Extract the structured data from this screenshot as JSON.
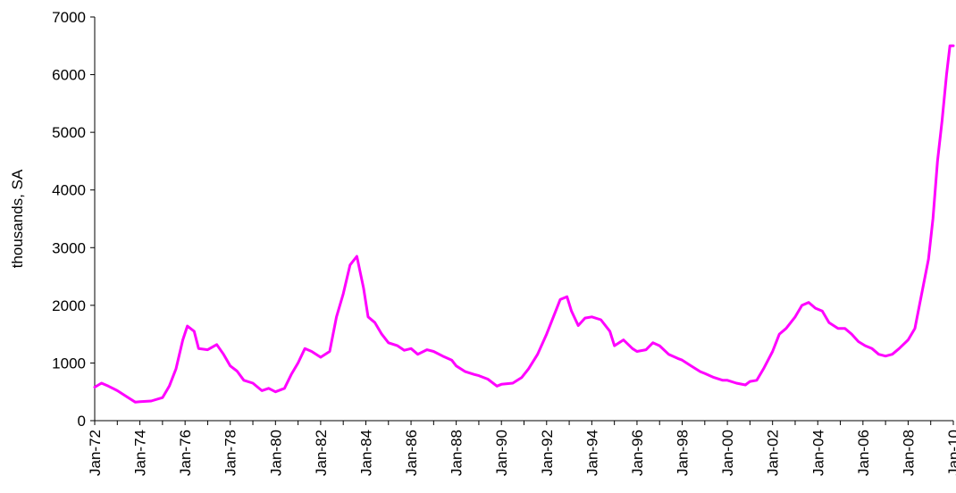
{
  "chart_data": {
    "type": "line",
    "title": "",
    "xlabel": "",
    "ylabel": "thousands, SA",
    "ylim": [
      0,
      7000
    ],
    "yticks": [
      0,
      1000,
      2000,
      3000,
      4000,
      5000,
      6000,
      7000
    ],
    "xlim": [
      1972.0,
      2010.0
    ],
    "xtick_labels": [
      "Jan-72",
      "Jan-74",
      "Jan-76",
      "Jan-78",
      "Jan-80",
      "Jan-82",
      "Jan-84",
      "Jan-86",
      "Jan-88",
      "Jan-90",
      "Jan-92",
      "Jan-94",
      "Jan-96",
      "Jan-98",
      "Jan-00",
      "Jan-02",
      "Jan-04",
      "Jan-06",
      "Jan-08",
      "Jan-10"
    ],
    "grid": false,
    "series": [
      {
        "color": "#ff00ff",
        "points": [
          [
            1972.0,
            580
          ],
          [
            1972.3,
            650
          ],
          [
            1972.6,
            600
          ],
          [
            1973.0,
            520
          ],
          [
            1973.4,
            420
          ],
          [
            1973.8,
            320
          ],
          [
            1974.0,
            330
          ],
          [
            1974.5,
            340
          ],
          [
            1975.0,
            400
          ],
          [
            1975.3,
            600
          ],
          [
            1975.6,
            900
          ],
          [
            1975.9,
            1400
          ],
          [
            1976.1,
            1640
          ],
          [
            1976.4,
            1550
          ],
          [
            1976.6,
            1250
          ],
          [
            1977.0,
            1230
          ],
          [
            1977.4,
            1320
          ],
          [
            1977.7,
            1150
          ],
          [
            1978.0,
            950
          ],
          [
            1978.3,
            860
          ],
          [
            1978.6,
            700
          ],
          [
            1979.0,
            650
          ],
          [
            1979.4,
            520
          ],
          [
            1979.7,
            560
          ],
          [
            1980.0,
            500
          ],
          [
            1980.4,
            560
          ],
          [
            1980.7,
            800
          ],
          [
            1981.0,
            1000
          ],
          [
            1981.3,
            1250
          ],
          [
            1981.6,
            1200
          ],
          [
            1982.0,
            1100
          ],
          [
            1982.4,
            1200
          ],
          [
            1982.7,
            1800
          ],
          [
            1983.0,
            2200
          ],
          [
            1983.3,
            2700
          ],
          [
            1983.6,
            2850
          ],
          [
            1983.9,
            2300
          ],
          [
            1984.1,
            1800
          ],
          [
            1984.4,
            1700
          ],
          [
            1984.7,
            1500
          ],
          [
            1985.0,
            1350
          ],
          [
            1985.4,
            1300
          ],
          [
            1985.7,
            1220
          ],
          [
            1986.0,
            1250
          ],
          [
            1986.3,
            1150
          ],
          [
            1986.7,
            1230
          ],
          [
            1987.0,
            1200
          ],
          [
            1987.4,
            1120
          ],
          [
            1987.8,
            1050
          ],
          [
            1988.0,
            950
          ],
          [
            1988.4,
            850
          ],
          [
            1988.8,
            800
          ],
          [
            1989.0,
            780
          ],
          [
            1989.4,
            720
          ],
          [
            1989.8,
            600
          ],
          [
            1990.0,
            630
          ],
          [
            1990.5,
            650
          ],
          [
            1990.9,
            750
          ],
          [
            1991.2,
            900
          ],
          [
            1991.6,
            1150
          ],
          [
            1992.0,
            1500
          ],
          [
            1992.3,
            1800
          ],
          [
            1992.6,
            2100
          ],
          [
            1992.9,
            2150
          ],
          [
            1993.1,
            1900
          ],
          [
            1993.4,
            1650
          ],
          [
            1993.7,
            1780
          ],
          [
            1994.0,
            1800
          ],
          [
            1994.4,
            1750
          ],
          [
            1994.8,
            1550
          ],
          [
            1995.0,
            1300
          ],
          [
            1995.4,
            1400
          ],
          [
            1995.8,
            1250
          ],
          [
            1996.0,
            1200
          ],
          [
            1996.4,
            1230
          ],
          [
            1996.7,
            1350
          ],
          [
            1997.0,
            1300
          ],
          [
            1997.4,
            1150
          ],
          [
            1997.8,
            1080
          ],
          [
            1998.0,
            1050
          ],
          [
            1998.4,
            950
          ],
          [
            1998.8,
            850
          ],
          [
            1999.0,
            820
          ],
          [
            1999.4,
            750
          ],
          [
            1999.8,
            700
          ],
          [
            2000.0,
            700
          ],
          [
            2000.4,
            650
          ],
          [
            2000.8,
            620
          ],
          [
            2001.0,
            680
          ],
          [
            2001.3,
            700
          ],
          [
            2001.6,
            900
          ],
          [
            2002.0,
            1200
          ],
          [
            2002.3,
            1500
          ],
          [
            2002.6,
            1600
          ],
          [
            2003.0,
            1800
          ],
          [
            2003.3,
            2000
          ],
          [
            2003.6,
            2050
          ],
          [
            2003.9,
            1950
          ],
          [
            2004.2,
            1900
          ],
          [
            2004.5,
            1700
          ],
          [
            2004.9,
            1600
          ],
          [
            2005.2,
            1600
          ],
          [
            2005.5,
            1500
          ],
          [
            2005.8,
            1370
          ],
          [
            2006.1,
            1300
          ],
          [
            2006.4,
            1250
          ],
          [
            2006.7,
            1150
          ],
          [
            2007.0,
            1120
          ],
          [
            2007.3,
            1150
          ],
          [
            2007.6,
            1250
          ],
          [
            2008.0,
            1400
          ],
          [
            2008.3,
            1600
          ],
          [
            2008.6,
            2200
          ],
          [
            2008.9,
            2800
          ],
          [
            2009.1,
            3500
          ],
          [
            2009.3,
            4500
          ],
          [
            2009.5,
            5200
          ],
          [
            2009.7,
            6000
          ],
          [
            2009.85,
            6500
          ],
          [
            2010.0,
            6500
          ]
        ]
      }
    ]
  }
}
